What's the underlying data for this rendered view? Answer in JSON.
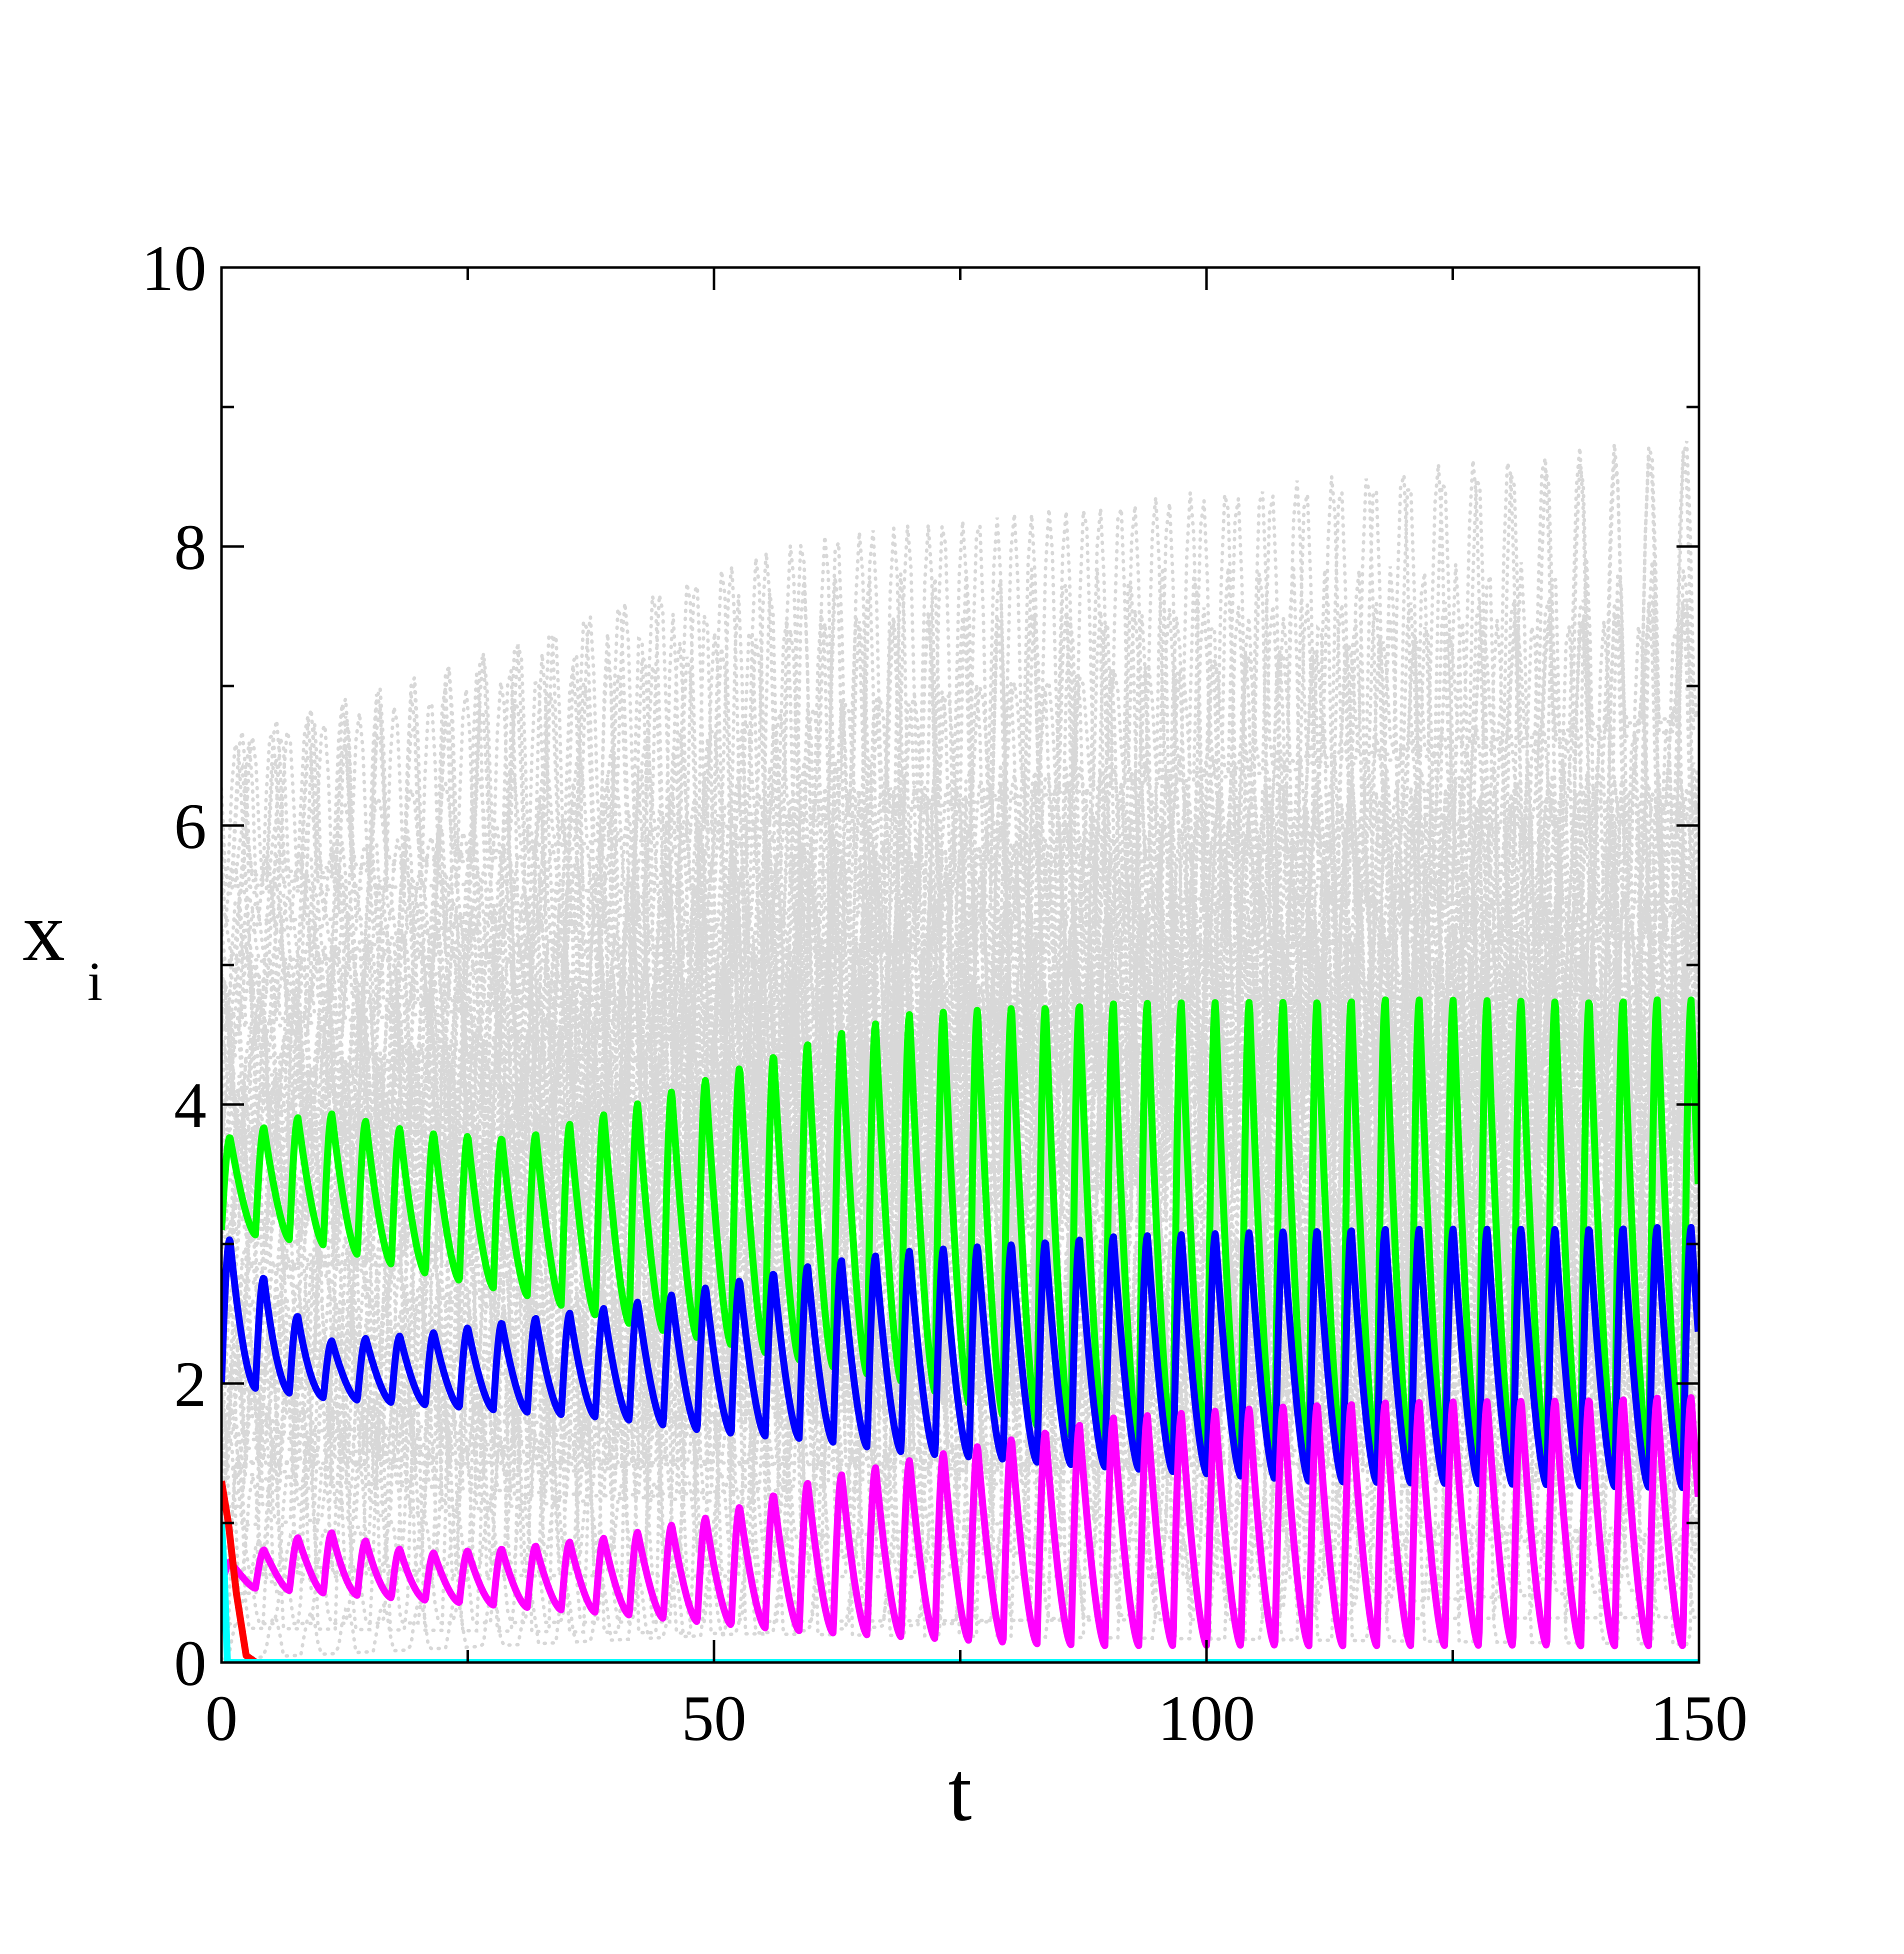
{
  "chart_data": {
    "type": "line",
    "title": "",
    "xlabel": "t",
    "ylabel": "x",
    "ylabel_subscript": "i",
    "xlim": [
      0,
      150
    ],
    "ylim": [
      0,
      10
    ],
    "x_ticks": [
      0,
      50,
      100,
      150
    ],
    "x_tick_labels": [
      "0",
      "50",
      "100",
      "150"
    ],
    "y_ticks": [
      0,
      2,
      4,
      6,
      8,
      10
    ],
    "y_tick_labels": [
      "0",
      "2",
      "4",
      "6",
      "8",
      "10"
    ],
    "grid": false,
    "legend": "none",
    "background_series": {
      "color": "#d8d8d8",
      "style": "dotted",
      "description_of_range": {
        "t": [
          0,
          150
        ],
        "x": [
          0,
          9.15
        ]
      }
    },
    "series": [
      {
        "color": "#00ff00",
        "style": "solid",
        "period": 3.45,
        "peaks": [
          [
            0,
            3.75
          ],
          [
            10,
            3.95
          ],
          [
            20,
            3.8
          ],
          [
            30,
            3.75
          ],
          [
            40,
            3.95
          ],
          [
            50,
            4.2
          ],
          [
            60,
            4.45
          ],
          [
            70,
            4.65
          ],
          [
            80,
            4.7
          ],
          [
            90,
            4.72
          ],
          [
            110,
            4.75
          ],
          [
            150,
            4.75
          ]
        ],
        "troughs": [
          [
            0,
            3.1
          ],
          [
            10,
            3.0
          ],
          [
            20,
            2.8
          ],
          [
            30,
            2.65
          ],
          [
            40,
            2.45
          ],
          [
            50,
            2.3
          ],
          [
            60,
            2.15
          ],
          [
            70,
            2.0
          ],
          [
            80,
            1.75
          ],
          [
            90,
            1.55
          ],
          [
            110,
            1.45
          ],
          [
            150,
            1.45
          ]
        ]
      },
      {
        "color": "#0000ff",
        "style": "solid",
        "period": 3.45,
        "peaks": [
          [
            0,
            3.1
          ],
          [
            10,
            2.3
          ],
          [
            20,
            2.35
          ],
          [
            30,
            2.45
          ],
          [
            40,
            2.55
          ],
          [
            50,
            2.7
          ],
          [
            60,
            2.85
          ],
          [
            70,
            2.95
          ],
          [
            80,
            3.0
          ],
          [
            90,
            3.05
          ],
          [
            110,
            3.1
          ],
          [
            150,
            3.12
          ]
        ],
        "troughs": [
          [
            0,
            2.0
          ],
          [
            10,
            1.9
          ],
          [
            20,
            1.85
          ],
          [
            30,
            1.8
          ],
          [
            40,
            1.75
          ],
          [
            50,
            1.65
          ],
          [
            60,
            1.6
          ],
          [
            70,
            1.5
          ],
          [
            80,
            1.45
          ],
          [
            90,
            1.4
          ],
          [
            110,
            1.3
          ],
          [
            150,
            1.25
          ]
        ]
      },
      {
        "color": "#ff00ff",
        "style": "solid",
        "period": 3.45,
        "peaks": [
          [
            0,
            0.7
          ],
          [
            10,
            0.95
          ],
          [
            20,
            0.78
          ],
          [
            30,
            0.82
          ],
          [
            40,
            0.9
          ],
          [
            50,
            1.05
          ],
          [
            60,
            1.3
          ],
          [
            70,
            1.45
          ],
          [
            80,
            1.6
          ],
          [
            90,
            1.75
          ],
          [
            110,
            1.85
          ],
          [
            150,
            1.9
          ]
        ],
        "troughs": [
          [
            0,
            0.55
          ],
          [
            10,
            0.5
          ],
          [
            20,
            0.45
          ],
          [
            30,
            0.4
          ],
          [
            40,
            0.35
          ],
          [
            50,
            0.28
          ],
          [
            60,
            0.22
          ],
          [
            70,
            0.18
          ],
          [
            80,
            0.14
          ],
          [
            90,
            0.12
          ],
          [
            110,
            0.12
          ],
          [
            150,
            0.12
          ]
        ]
      },
      {
        "color": "#ff0000",
        "style": "solid",
        "points": [
          [
            0,
            1.3
          ],
          [
            0.7,
            1.0
          ],
          [
            1.5,
            0.5
          ],
          [
            2.5,
            0.05
          ],
          [
            3.5,
            0
          ]
        ]
      },
      {
        "color": "#00ffff",
        "style": "solid",
        "points": [
          [
            0,
            1.0
          ],
          [
            0.3,
            0.6
          ],
          [
            0.6,
            0
          ],
          [
            150,
            0
          ]
        ]
      }
    ]
  }
}
